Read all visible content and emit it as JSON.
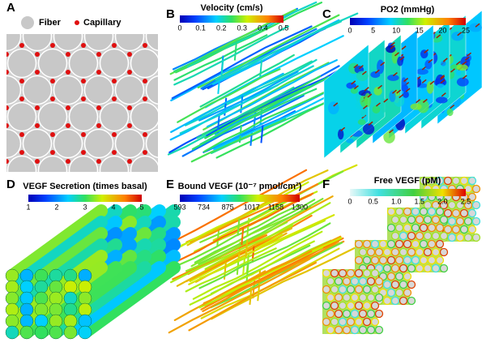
{
  "panels": [
    {
      "letter": "A",
      "legend": [
        "Fiber",
        "Capillary"
      ]
    },
    {
      "letter": "B",
      "colorbar": {
        "title": "Velocity (cm/s)",
        "ticks": [
          "0",
          "0.1",
          "0.2",
          "0.3",
          "0.4",
          "0.5"
        ]
      }
    },
    {
      "letter": "C",
      "colorbar": {
        "title": "PO2 (mmHg)",
        "ticks": [
          "0",
          "5",
          "10",
          "15",
          "20",
          "25"
        ]
      }
    },
    {
      "letter": "D",
      "colorbar": {
        "title": "VEGF Secretion (times basal)",
        "ticks": [
          "1",
          "2",
          "3",
          "4",
          "5"
        ]
      }
    },
    {
      "letter": "E",
      "colorbar": {
        "title": "Bound VEGF (10⁻⁷ pmol/cm²)",
        "ticks": [
          "593",
          "734",
          "875",
          "1017",
          "1158",
          "1300"
        ]
      }
    },
    {
      "letter": "F",
      "colorbar": {
        "title": "Free VEGF (pM)",
        "ticks": [
          "0",
          "0.5",
          "1.0",
          "1.5",
          "2.0",
          "2.5"
        ]
      }
    }
  ]
}
